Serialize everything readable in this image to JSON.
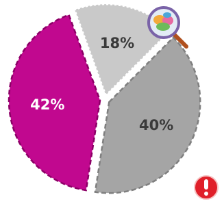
{
  "chart_data": {
    "type": "pie",
    "values": [
      18,
      40,
      42
    ],
    "value_labels": [
      "18%",
      "40%",
      "42%"
    ],
    "colors": [
      "#c9c9c9",
      "#a5a5a5",
      "#c1088f"
    ],
    "label_colors": [
      "#3a3a3a",
      "#3a3a3a",
      "#ffffff"
    ]
  }
}
